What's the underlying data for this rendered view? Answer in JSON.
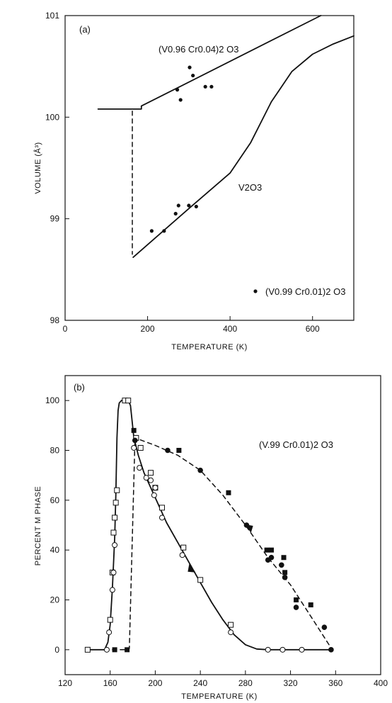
{
  "chart_data": [
    {
      "type": "line",
      "panel_label": "(a)",
      "xlabel": "TEMPERATURE (K)",
      "ylabel": "VOLUME (Å³)",
      "xlim": [
        0,
        700
      ],
      "ylim": [
        98,
        101
      ],
      "x_ticks": [
        "0",
        "200",
        "400",
        "600"
      ],
      "x_tick_values": [
        0,
        200,
        400,
        600
      ],
      "y_ticks": [
        "98",
        "99",
        "100",
        "101"
      ],
      "y_tick_values": [
        98,
        99,
        100,
        101
      ],
      "annotations": {
        "upper_curve": "(V0.96 Cr0.04)2 O3",
        "lower_curve": "V2O3",
        "legend_marker": "(V0.99 Cr0.01)2 O3"
      },
      "series": [
        {
          "name": "(V0.96 Cr0.04)2 O3",
          "style": "solid",
          "x": [
            80,
            185,
            185,
            620
          ],
          "y": [
            100.08,
            100.08,
            100.11,
            101.0
          ]
        },
        {
          "name": "V2O3",
          "style": "solid",
          "x": [
            165,
            300,
            400,
            450,
            500,
            550,
            600,
            650,
            700
          ],
          "y": [
            98.62,
            99.1,
            99.45,
            99.75,
            100.15,
            100.45,
            100.62,
            100.72,
            100.8
          ]
        },
        {
          "style": "dashed",
          "x": [
            163,
            163
          ],
          "y": [
            100.06,
            98.65
          ]
        },
        {
          "name": "(V0.99 Cr0.01)2 O3",
          "style": "points",
          "x": [
            210,
            240,
            268,
            275,
            300,
            318,
            272,
            280,
            302,
            310,
            340,
            355
          ],
          "y": [
            98.88,
            98.88,
            99.05,
            99.13,
            99.13,
            99.12,
            100.27,
            100.17,
            100.49,
            100.41,
            100.3,
            100.3
          ]
        }
      ]
    },
    {
      "type": "line",
      "panel_label": "(b)",
      "annotation": "(V.99 Cr0.01)2 O3",
      "xlabel": "TEMPERATURE (K)",
      "ylabel": "PERCENT M PHASE",
      "xlim": [
        120,
        400
      ],
      "ylim": [
        -10,
        110
      ],
      "x_ticks": [
        "120",
        "160",
        "200",
        "240",
        "280",
        "320",
        "360",
        "400"
      ],
      "x_tick_values": [
        120,
        160,
        200,
        240,
        280,
        320,
        360,
        400
      ],
      "y_ticks": [
        "0",
        "20",
        "40",
        "60",
        "80",
        "100"
      ],
      "y_tick_values": [
        0,
        20,
        40,
        60,
        80,
        100
      ],
      "series": [
        {
          "style": "solid",
          "x": [
            140,
            155,
            158,
            160,
            162,
            164,
            165,
            166,
            167,
            168,
            170,
            172,
            176,
            178,
            181,
            185,
            190,
            200,
            210,
            220,
            230,
            240,
            250,
            260,
            270,
            280,
            290,
            300,
            320,
            340,
            357
          ],
          "y": [
            0,
            0,
            3,
            10,
            25,
            45,
            62,
            85,
            96,
            99,
            100,
            100,
            100,
            98,
            85,
            78,
            71,
            61,
            51,
            43,
            35,
            27,
            19,
            12,
            6,
            2,
            0.3,
            0,
            0,
            0,
            0
          ]
        },
        {
          "style": "dashed",
          "x": [
            162,
            176,
            177,
            182,
            200,
            220,
            240,
            260,
            280,
            300,
            320,
            340,
            357
          ],
          "y": [
            0,
            0,
            0.5,
            85,
            82,
            78,
            72,
            62,
            50,
            37,
            26,
            12,
            0
          ]
        },
        {
          "name": "open squares",
          "style": "points-open-square",
          "x": [
            140,
            160,
            162,
            163,
            164,
            165,
            166,
            173,
            176,
            183,
            187,
            196,
            200,
            206,
            225,
            240,
            267
          ],
          "y": [
            0,
            12,
            31,
            47,
            53,
            59,
            64,
            100,
            100,
            85,
            81,
            71,
            65,
            57,
            41,
            28,
            10
          ]
        },
        {
          "name": "open circles",
          "style": "points-open-circle",
          "x": [
            157,
            159,
            162,
            163,
            164,
            181,
            186,
            192,
            196,
            199,
            200,
            206,
            224,
            267,
            300,
            313,
            330
          ],
          "y": [
            0,
            7,
            24,
            31,
            42,
            81,
            73,
            69,
            68,
            62,
            65,
            53,
            38,
            7,
            0,
            0,
            0
          ]
        },
        {
          "name": "filled squares",
          "style": "points-filled-square",
          "x": [
            164,
            175,
            181,
            221,
            265,
            299,
            303,
            314,
            315,
            325,
            338
          ],
          "y": [
            0,
            0,
            88,
            80,
            63,
            40,
            40,
            37,
            31,
            20,
            18
          ]
        },
        {
          "name": "filled circles",
          "style": "points-filled-circle",
          "x": [
            182,
            211,
            240,
            281,
            300,
            303,
            312,
            315,
            325,
            350,
            356
          ],
          "y": [
            84,
            80,
            72,
            50,
            36,
            37,
            34,
            29,
            17,
            9,
            0
          ]
        }
      ]
    }
  ]
}
